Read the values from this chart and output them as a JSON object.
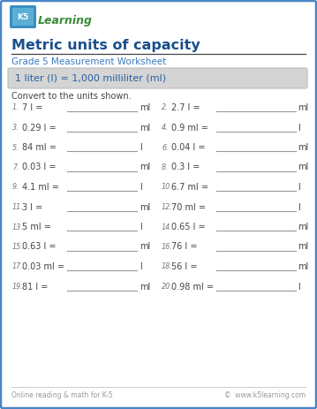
{
  "title": "Metric units of capacity",
  "subtitle": "Grade 5 Measurement Worksheet",
  "formula_box": "1 liter (l) = 1,000 milliliter (ml)",
  "instruction": "Convert to the units shown.",
  "problems": [
    {
      "num": "1.",
      "left": "7 l =",
      "right_unit": "ml"
    },
    {
      "num": "2.",
      "left": "2.7 l =",
      "right_unit": "ml"
    },
    {
      "num": "3.",
      "left": "0.29 l =",
      "right_unit": "ml"
    },
    {
      "num": "4.",
      "left": "0.9 ml =",
      "right_unit": "l"
    },
    {
      "num": "5.",
      "left": "84 ml =",
      "right_unit": "l"
    },
    {
      "num": "6.",
      "left": "0.04 l =",
      "right_unit": "ml"
    },
    {
      "num": "7.",
      "left": "0.03 l =",
      "right_unit": "ml"
    },
    {
      "num": "8.",
      "left": "0.3 l =",
      "right_unit": "ml"
    },
    {
      "num": "9.",
      "left": "4.1 ml =",
      "right_unit": "l"
    },
    {
      "num": "10.",
      "left": "6.7 ml =",
      "right_unit": "l"
    },
    {
      "num": "11.",
      "left": "3 l =",
      "right_unit": "ml"
    },
    {
      "num": "12.",
      "left": "70 ml =",
      "right_unit": "l"
    },
    {
      "num": "13.",
      "left": "5 ml =",
      "right_unit": "l"
    },
    {
      "num": "14.",
      "left": "0.65 l =",
      "right_unit": "ml"
    },
    {
      "num": "15.",
      "left": "0.63 l =",
      "right_unit": "ml"
    },
    {
      "num": "16.",
      "left": "76 l =",
      "right_unit": "ml"
    },
    {
      "num": "17.",
      "left": "0.03 ml =",
      "right_unit": "l"
    },
    {
      "num": "18.",
      "left": "56 l =",
      "right_unit": "ml"
    },
    {
      "num": "19.",
      "left": "81 l =",
      "right_unit": "ml"
    },
    {
      "num": "20.",
      "left": "0.98 ml =",
      "right_unit": "l"
    }
  ],
  "footer_left": "Online reading & math for K-5",
  "footer_right": "©  www.k5learning.com",
  "bg_color": "#ffffff",
  "border_color": "#4a86c8",
  "title_color": "#1a4f8a",
  "subtitle_color": "#3a7abf",
  "formula_bg": "#d4d4d4",
  "formula_text_color": "#2a5fa0",
  "problem_color": "#444444",
  "num_color": "#777777",
  "footer_color": "#999999",
  "line_color": "#999999",
  "instruction_color": "#444444"
}
